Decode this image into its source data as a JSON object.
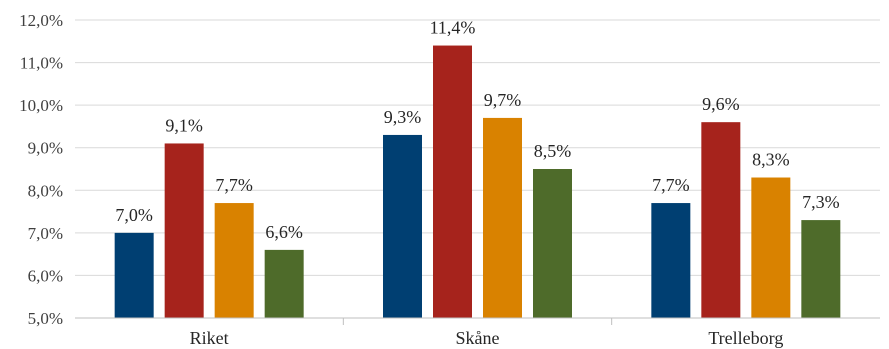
{
  "chart_data": {
    "type": "bar",
    "categories": [
      "Riket",
      "Skåne",
      "Trelleborg"
    ],
    "series": [
      {
        "values": [
          7.0,
          9.3,
          7.7
        ],
        "labels": [
          "7,0%",
          "9,3%",
          "7,7%"
        ],
        "color": "#003f72"
      },
      {
        "values": [
          9.1,
          11.4,
          9.6
        ],
        "labels": [
          "9,1%",
          "11,4%",
          "9,6%"
        ],
        "color": "#a6231c"
      },
      {
        "values": [
          7.7,
          9.7,
          8.3
        ],
        "labels": [
          "7,7%",
          "9,7%",
          "8,3%"
        ],
        "color": "#d98200"
      },
      {
        "values": [
          6.6,
          8.5,
          7.3
        ],
        "labels": [
          "6,6%",
          "8,5%",
          "7,3%"
        ],
        "color": "#4e6b2a"
      }
    ],
    "yticks": [
      5.0,
      6.0,
      7.0,
      8.0,
      9.0,
      10.0,
      11.0,
      12.0
    ],
    "ytick_labels": [
      "5,0%",
      "6,0%",
      "7,0%",
      "8,0%",
      "9,0%",
      "10,0%",
      "11,0%",
      "12,0%"
    ],
    "ylim": [
      5.0,
      12.0
    ],
    "grid": true,
    "legend": "none",
    "title": "",
    "xlabel": "",
    "ylabel": ""
  }
}
